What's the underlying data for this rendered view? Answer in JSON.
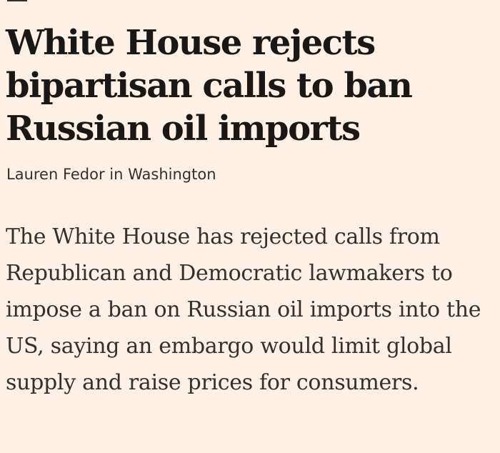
{
  "article": {
    "headline": "White House rejects bipartisan calls to ban Russian oil imports",
    "byline": "Lauren Fedor in Washington",
    "standfirst": "The White House has rejected calls from Republican and Democratic lawmakers to impose a ban on Russian oil imports into the US, saying an embargo would limit global supply and raise prices for consumers."
  }
}
